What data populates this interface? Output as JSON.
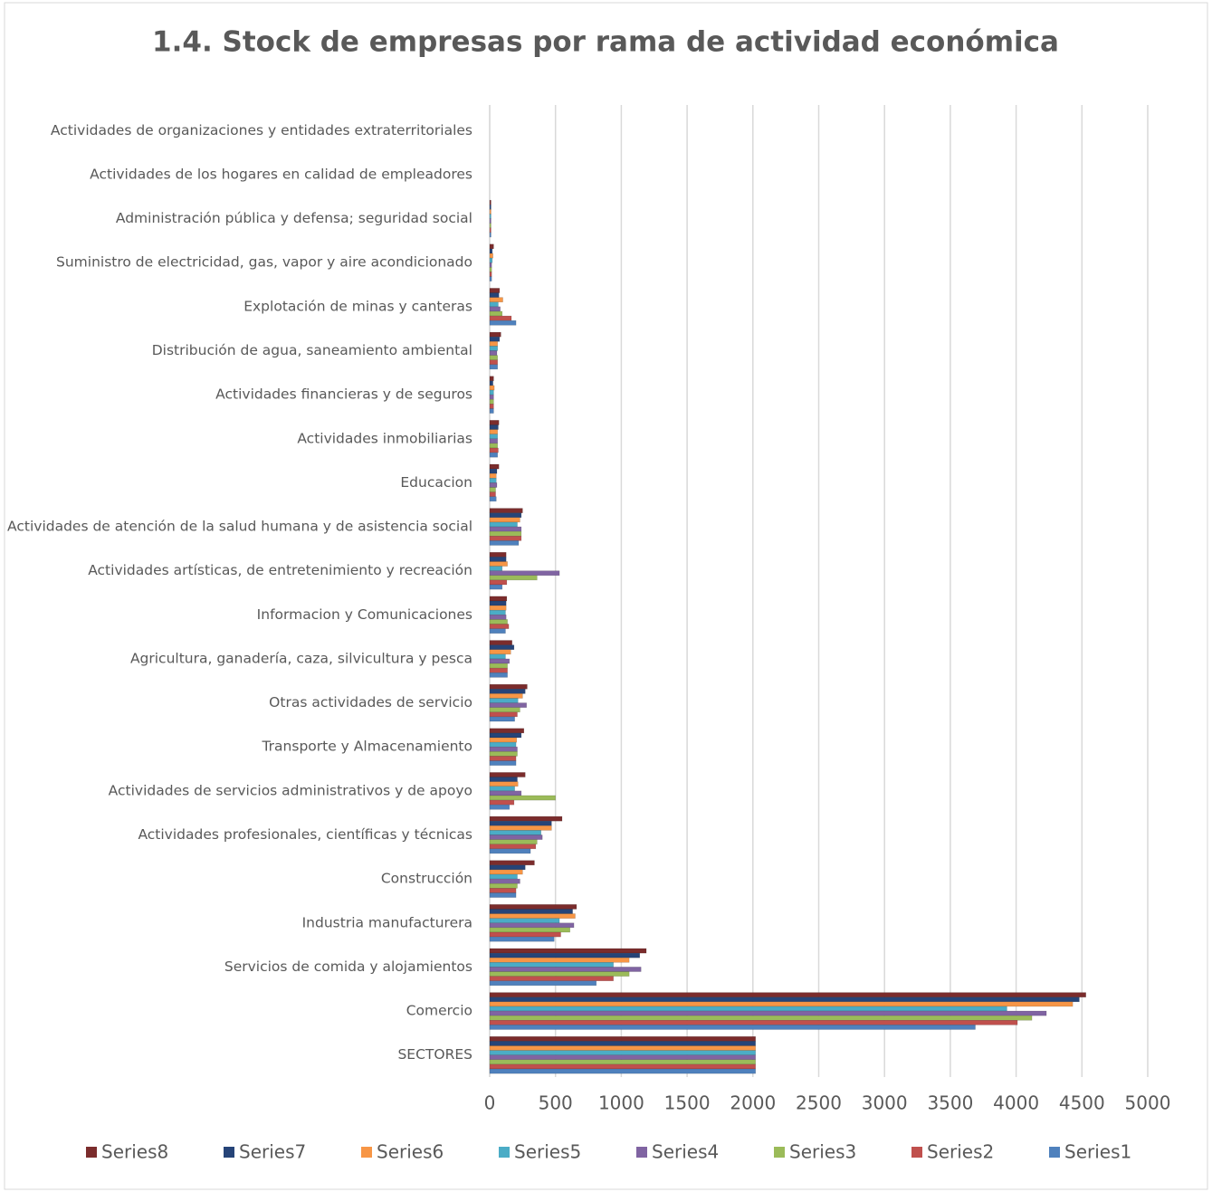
{
  "chart_data": {
    "type": "hbar",
    "title": "1.4. Stock de empresas por rama de actividad económica",
    "categories": [
      "Actividades de organizaciones y entidades extraterritoriales",
      "Actividades de los hogares en calidad de empleadores",
      "Administración pública y defensa; seguridad social",
      "Suministro de electricidad, gas, vapor y aire acondicionado",
      "Explotación de minas y canteras",
      "Distribución de agua, saneamiento ambiental",
      "Actividades financieras y de seguros",
      "Actividades inmobiliarias",
      "Educacion",
      "Actividades de atención de la salud humana y de asistencia social",
      "Actividades artísticas, de entretenimiento y recreación",
      "Informacion y Comunicaciones",
      "Agricultura, ganadería, caza, silvicultura y pesca",
      "Otras actividades de servicio",
      "Transporte y Almacenamiento",
      "Actividades de servicios administrativos y de apoyo",
      "Actividades profesionales, científicas y técnicas",
      "Construcción",
      "Industria manufacturera",
      "Servicios de comida y alojamientos",
      "Comercio",
      "SECTORES"
    ],
    "series": [
      {
        "name": "Series8",
        "color": "#7b2c2c",
        "values": [
          0,
          0,
          10,
          30,
          75,
          85,
          30,
          70,
          70,
          250,
          125,
          130,
          170,
          285,
          260,
          270,
          550,
          340,
          660,
          1190,
          4530,
          2020
        ]
      },
      {
        "name": "Series7",
        "color": "#264478",
        "values": [
          0,
          0,
          10,
          20,
          70,
          75,
          25,
          65,
          55,
          240,
          125,
          125,
          185,
          270,
          240,
          210,
          470,
          270,
          630,
          1140,
          4480,
          2020
        ]
      },
      {
        "name": "Series6",
        "color": "#f79646",
        "values": [
          0,
          0,
          10,
          25,
          100,
          60,
          35,
          60,
          50,
          230,
          135,
          125,
          160,
          250,
          205,
          215,
          470,
          250,
          650,
          1060,
          4430,
          2020
        ]
      },
      {
        "name": "Series5",
        "color": "#4bacc6",
        "values": [
          0,
          0,
          10,
          20,
          65,
          60,
          30,
          60,
          50,
          210,
          95,
          120,
          120,
          215,
          200,
          190,
          390,
          210,
          530,
          940,
          3930,
          2020
        ]
      },
      {
        "name": "Series4",
        "color": "#8064a2",
        "values": [
          0,
          0,
          10,
          15,
          80,
          55,
          30,
          60,
          55,
          240,
          530,
          125,
          150,
          280,
          210,
          240,
          400,
          230,
          640,
          1150,
          4230,
          2020
        ]
      },
      {
        "name": "Series3",
        "color": "#9bbb59",
        "values": [
          0,
          0,
          10,
          15,
          95,
          60,
          30,
          60,
          45,
          240,
          360,
          135,
          135,
          230,
          210,
          500,
          360,
          210,
          610,
          1060,
          4120,
          2020
        ]
      },
      {
        "name": "Series2",
        "color": "#c0504d",
        "values": [
          0,
          0,
          10,
          15,
          165,
          60,
          30,
          65,
          45,
          240,
          130,
          145,
          135,
          210,
          200,
          185,
          350,
          200,
          540,
          940,
          4010,
          2020
        ]
      },
      {
        "name": "Series1",
        "color": "#4f81bd",
        "values": [
          0,
          0,
          10,
          15,
          200,
          60,
          30,
          60,
          50,
          220,
          95,
          120,
          135,
          190,
          200,
          150,
          310,
          200,
          490,
          810,
          3690,
          2020
        ]
      }
    ],
    "xlim": [
      0,
      5000
    ],
    "xticks": [
      0,
      500,
      1000,
      1500,
      2000,
      2500,
      3000,
      3500,
      4000,
      4500,
      5000
    ],
    "grid": true
  }
}
